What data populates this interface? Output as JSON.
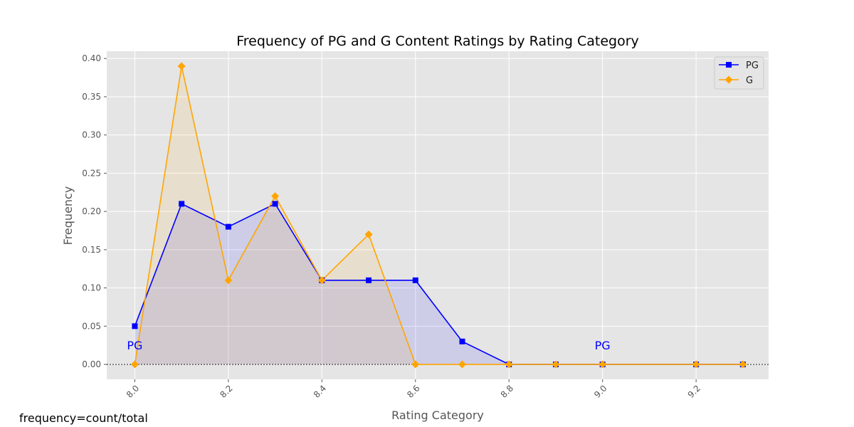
{
  "chart_data": {
    "type": "line",
    "title": "Frequency of PG and G Content Ratings by Rating Category",
    "xlabel": "Rating Category",
    "ylabel": "Frequency",
    "x": [
      8.0,
      8.1,
      8.2,
      8.3,
      8.4,
      8.5,
      8.6,
      8.7,
      8.8,
      8.9,
      9.0,
      9.2,
      9.3
    ],
    "series": [
      {
        "name": "PG",
        "color": "#0000ff",
        "marker": "square",
        "values": [
          0.05,
          0.21,
          0.18,
          0.21,
          0.11,
          0.11,
          0.11,
          0.03,
          0.0,
          0.0,
          0.0,
          0.0,
          0.0
        ]
      },
      {
        "name": "G",
        "color": "#ffa500",
        "marker": "diamond",
        "values": [
          0.0,
          0.39,
          0.11,
          0.22,
          0.11,
          0.17,
          0.0,
          0.0,
          0.0,
          0.0,
          0.0,
          0.0,
          0.0
        ]
      }
    ],
    "xlim": [
      7.94,
      9.355
    ],
    "ylim": [
      -0.0195,
      0.4095
    ],
    "xticks": [
      "8.0",
      "8.2",
      "8.4",
      "8.6",
      "8.8",
      "9.0",
      "9.2"
    ],
    "yticks": [
      "0.00",
      "0.05",
      "0.10",
      "0.15",
      "0.20",
      "0.25",
      "0.30",
      "0.35",
      "0.40"
    ],
    "grid": true,
    "legend_position": "top-right",
    "annotations": [
      {
        "text": "PG",
        "x": 8.0,
        "y": 0.025,
        "color": "#0000ff"
      },
      {
        "text": "PG",
        "x": 9.0,
        "y": 0.025,
        "color": "#0000ff"
      }
    ],
    "footnote": "frequency=count/total"
  }
}
